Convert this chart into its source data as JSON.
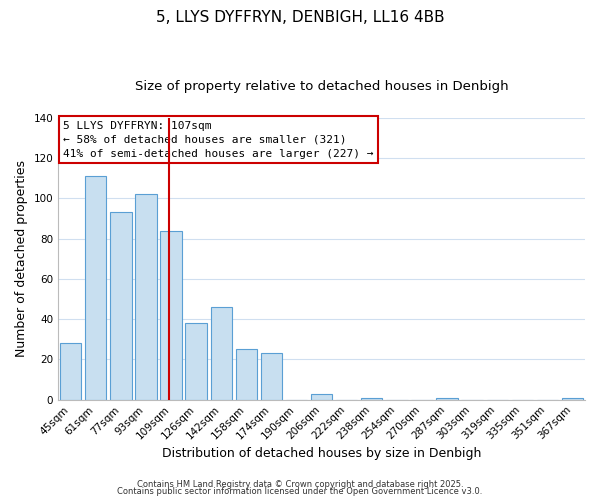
{
  "title": "5, LLYS DYFFRYN, DENBIGH, LL16 4BB",
  "subtitle": "Size of property relative to detached houses in Denbigh",
  "xlabel": "Distribution of detached houses by size in Denbigh",
  "ylabel": "Number of detached properties",
  "categories": [
    "45sqm",
    "61sqm",
    "77sqm",
    "93sqm",
    "109sqm",
    "126sqm",
    "142sqm",
    "158sqm",
    "174sqm",
    "190sqm",
    "206sqm",
    "222sqm",
    "238sqm",
    "254sqm",
    "270sqm",
    "287sqm",
    "303sqm",
    "319sqm",
    "335sqm",
    "351sqm",
    "367sqm"
  ],
  "values": [
    28,
    111,
    93,
    102,
    84,
    38,
    46,
    25,
    23,
    0,
    3,
    0,
    1,
    0,
    0,
    1,
    0,
    0,
    0,
    0,
    1
  ],
  "bar_color": "#c8dff0",
  "bar_edge_color": "#5a9fd4",
  "vline_x_index": 4,
  "vline_color": "#cc0000",
  "annotation_line1": "5 LLYS DYFFRYN: 107sqm",
  "annotation_line2": "← 58% of detached houses are smaller (321)",
  "annotation_line3": "41% of semi-detached houses are larger (227) →",
  "annotation_box_color": "#cc0000",
  "annotation_box_bg": "#ffffff",
  "ylim": [
    0,
    140
  ],
  "yticks": [
    0,
    20,
    40,
    60,
    80,
    100,
    120,
    140
  ],
  "footer_line1": "Contains HM Land Registry data © Crown copyright and database right 2025.",
  "footer_line2": "Contains public sector information licensed under the Open Government Licence v3.0.",
  "background_color": "#ffffff",
  "grid_color": "#d0dff0",
  "title_fontsize": 11,
  "subtitle_fontsize": 9.5,
  "tick_fontsize": 7.5,
  "axis_label_fontsize": 9,
  "annotation_fontsize": 8,
  "footer_fontsize": 6
}
